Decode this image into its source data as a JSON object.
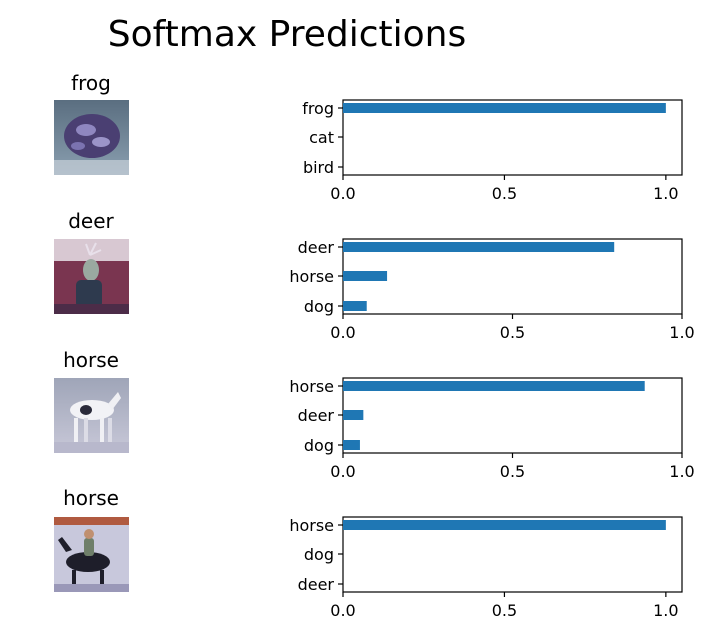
{
  "chart_data": {
    "type": "bar",
    "title": "Softmax Predictions",
    "subplots": [
      {
        "image_title": "frog",
        "image_icon": "frog-thumbnail",
        "categories": [
          "frog",
          "cat",
          "bird"
        ],
        "values": [
          1.0,
          0.0,
          0.0
        ],
        "xlim": [
          0,
          1.05
        ],
        "xticks": [
          "0.0",
          "0.5",
          "1.0"
        ]
      },
      {
        "image_title": "deer",
        "image_icon": "deer-thumbnail",
        "categories": [
          "deer",
          "horse",
          "dog"
        ],
        "values": [
          0.8,
          0.13,
          0.07
        ],
        "xlim": [
          0,
          1.0
        ],
        "xticks": [
          "0.0",
          "0.5",
          "1.0"
        ]
      },
      {
        "image_title": "horse",
        "image_icon": "horse-thumbnail",
        "categories": [
          "horse",
          "deer",
          "dog"
        ],
        "values": [
          0.89,
          0.06,
          0.05
        ],
        "xlim": [
          0,
          1.0
        ],
        "xticks": [
          "0.0",
          "0.5",
          "1.0"
        ]
      },
      {
        "image_title": "horse",
        "image_icon": "horse-rider-thumbnail",
        "categories": [
          "horse",
          "dog",
          "deer"
        ],
        "values": [
          1.0,
          0.0,
          0.0
        ],
        "xlim": [
          0,
          1.05
        ],
        "xticks": [
          "0.0",
          "0.5",
          "1.0"
        ]
      }
    ],
    "bar_color": "#1f77b4",
    "grid": false,
    "legend": "none"
  }
}
